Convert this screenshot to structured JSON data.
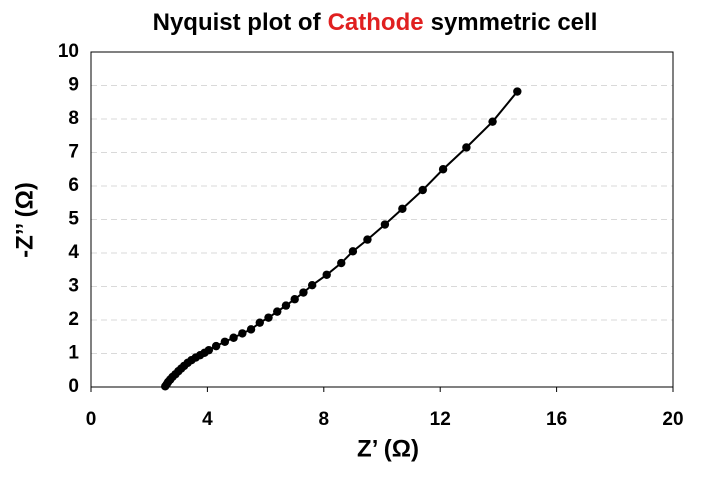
{
  "chart_data": {
    "type": "scatter",
    "title": [
      "Nyquist plot of",
      "Cathode",
      "symmetric cell"
    ],
    "title_colors": [
      "#000000",
      "#e02020",
      "#000000"
    ],
    "x_label": "Z’  (Ω)",
    "y_label": "-Z’’ (Ω)",
    "xlim": [
      0,
      20
    ],
    "xticks": [
      0,
      4,
      8,
      12,
      16,
      20
    ],
    "ylim": [
      0,
      10
    ],
    "yticks": [
      0,
      1,
      2,
      3,
      4,
      5,
      6,
      7,
      8,
      9,
      10
    ],
    "grid": true,
    "series": [
      {
        "color": "#000000",
        "x": [
          2.55,
          2.6,
          2.65,
          2.72,
          2.8,
          2.9,
          3.0,
          3.1,
          3.2,
          3.32,
          3.45,
          3.6,
          3.75,
          3.9,
          4.05,
          4.3,
          4.6,
          4.9,
          5.2,
          5.5,
          5.8,
          6.1,
          6.4,
          6.7,
          7.0,
          7.3,
          7.6,
          8.1,
          8.6,
          9.0,
          9.5,
          10.1,
          10.7,
          11.4,
          12.1,
          12.9,
          13.8,
          14.65
        ],
        "values": [
          0.02,
          0.08,
          0.15,
          0.22,
          0.3,
          0.38,
          0.47,
          0.55,
          0.63,
          0.72,
          0.8,
          0.88,
          0.95,
          1.02,
          1.1,
          1.22,
          1.35,
          1.47,
          1.6,
          1.72,
          1.92,
          2.07,
          2.25,
          2.43,
          2.62,
          2.82,
          3.04,
          3.35,
          3.7,
          4.05,
          4.4,
          4.85,
          5.32,
          5.88,
          6.5,
          7.15,
          7.92,
          8.82
        ]
      }
    ]
  }
}
